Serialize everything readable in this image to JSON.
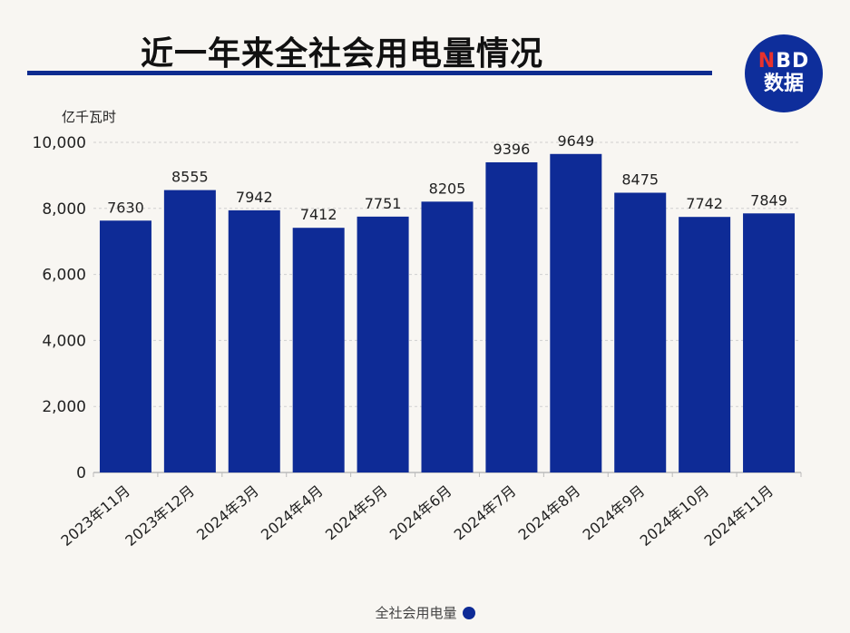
{
  "header": {
    "title": "近一年来全社会用电量情况",
    "logo_line1_accent": "N",
    "logo_line1_rest": "BD",
    "logo_line2": "数据"
  },
  "colors": {
    "bar": "#0e2b96",
    "accent": "#0e2b8f",
    "logo_bg": "#0e2e9b",
    "logo_accent": "#e8322d"
  },
  "chart_data": {
    "type": "bar",
    "title": "近一年来全社会用电量情况",
    "unit_label": "亿千瓦时",
    "categories": [
      "2023年11月",
      "2023年12月",
      "2024年3月",
      "2024年4月",
      "2024年5月",
      "2024年6月",
      "2024年7月",
      "2024年8月",
      "2024年9月",
      "2024年10月",
      "2024年11月"
    ],
    "series": [
      {
        "name": "全社会用电量",
        "values": [
          7630,
          8555,
          7942,
          7412,
          7751,
          8205,
          9396,
          9649,
          8475,
          7742,
          7849
        ]
      }
    ],
    "y_ticks": [
      "0",
      "2,000",
      "4,000",
      "6,000",
      "8,000",
      "10,000"
    ],
    "y_tick_values": [
      0,
      2000,
      4000,
      6000,
      8000,
      10000
    ],
    "ylim": [
      0,
      10000
    ],
    "grid": true,
    "legend_position": "bottom-center"
  }
}
